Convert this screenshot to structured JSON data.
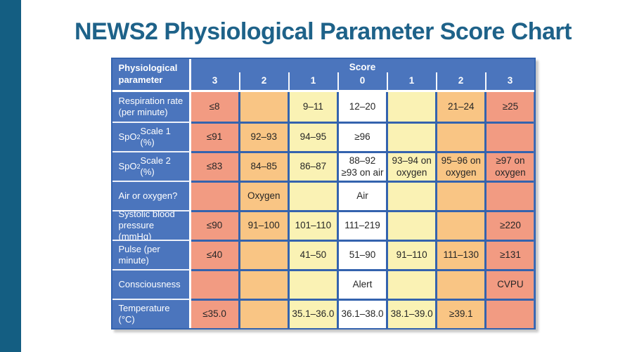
{
  "slide": {
    "title": "NEWS2 Physiological Parameter Score Chart"
  },
  "colors": {
    "accent_bar": "#145E82",
    "title_text": "#1E6289",
    "header_blue": "#4B75BD",
    "grid_blue": "#3463AE",
    "score3_salmon": "#F29B82",
    "score2_orange": "#F9C584",
    "score1_yellow": "#FAF2B4",
    "score0_white": "#FFFFFF"
  },
  "chart_data": {
    "type": "table",
    "title": "NEWS2 Physiological Parameter Score Chart",
    "header": {
      "param": "Physiological parameter",
      "score": "Score",
      "score_values": [
        "3",
        "2",
        "1",
        "0",
        "1",
        "2",
        "3"
      ]
    },
    "tone_legend": {
      "salmon": "score 3",
      "orange": "score 2",
      "yellow": "score 1",
      "white": "score 0"
    },
    "rows": [
      {
        "label_pre": "Respiration rate\n(per minute)",
        "label_sub": "",
        "label_post": "",
        "cells": [
          {
            "text": "≤8",
            "tone": "salmon"
          },
          {
            "text": "",
            "tone": "orange"
          },
          {
            "text": "9–11",
            "tone": "yellow"
          },
          {
            "text": "12–20",
            "tone": "white"
          },
          {
            "text": "",
            "tone": "yellow"
          },
          {
            "text": "21–24",
            "tone": "orange"
          },
          {
            "text": "≥25",
            "tone": "salmon"
          }
        ]
      },
      {
        "label_pre": "SpO",
        "label_sub": "2",
        "label_post": " Scale 1 (%)",
        "cells": [
          {
            "text": "≤91",
            "tone": "salmon"
          },
          {
            "text": "92–93",
            "tone": "orange"
          },
          {
            "text": "94–95",
            "tone": "yellow"
          },
          {
            "text": "≥96",
            "tone": "white"
          },
          {
            "text": "",
            "tone": "yellow"
          },
          {
            "text": "",
            "tone": "orange"
          },
          {
            "text": "",
            "tone": "salmon"
          }
        ]
      },
      {
        "label_pre": "SpO",
        "label_sub": "2",
        "label_post": " Scale 2 (%)",
        "cells": [
          {
            "text": "≤83",
            "tone": "salmon"
          },
          {
            "text": "84–85",
            "tone": "orange"
          },
          {
            "text": "86–87",
            "tone": "yellow"
          },
          {
            "text": "88–92\n≥93 on air",
            "tone": "white"
          },
          {
            "text": "93–94 on\noxygen",
            "tone": "yellow"
          },
          {
            "text": "95–96 on\noxygen",
            "tone": "orange"
          },
          {
            "text": "≥97 on\noxygen",
            "tone": "salmon"
          }
        ]
      },
      {
        "label_pre": "Air or oxygen?",
        "label_sub": "",
        "label_post": "",
        "cells": [
          {
            "text": "",
            "tone": "salmon"
          },
          {
            "text": "Oxygen",
            "tone": "orange"
          },
          {
            "text": "",
            "tone": "yellow"
          },
          {
            "text": "Air",
            "tone": "white"
          },
          {
            "text": "",
            "tone": "yellow"
          },
          {
            "text": "",
            "tone": "orange"
          },
          {
            "text": "",
            "tone": "salmon"
          }
        ]
      },
      {
        "label_pre": "Systolic blood\npressure (mmHg)",
        "label_sub": "",
        "label_post": "",
        "cells": [
          {
            "text": "≤90",
            "tone": "salmon"
          },
          {
            "text": "91–100",
            "tone": "orange"
          },
          {
            "text": "101–110",
            "tone": "yellow"
          },
          {
            "text": "111–219",
            "tone": "white"
          },
          {
            "text": "",
            "tone": "yellow"
          },
          {
            "text": "",
            "tone": "orange"
          },
          {
            "text": "≥220",
            "tone": "salmon"
          }
        ]
      },
      {
        "label_pre": "Pulse (per minute)",
        "label_sub": "",
        "label_post": "",
        "cells": [
          {
            "text": "≤40",
            "tone": "salmon"
          },
          {
            "text": "",
            "tone": "orange"
          },
          {
            "text": "41–50",
            "tone": "yellow"
          },
          {
            "text": "51–90",
            "tone": "white"
          },
          {
            "text": "91–110",
            "tone": "yellow"
          },
          {
            "text": "111–130",
            "tone": "orange"
          },
          {
            "text": "≥131",
            "tone": "salmon"
          }
        ]
      },
      {
        "label_pre": "Consciousness",
        "label_sub": "",
        "label_post": "",
        "cells": [
          {
            "text": "",
            "tone": "salmon"
          },
          {
            "text": "",
            "tone": "orange"
          },
          {
            "text": "",
            "tone": "yellow"
          },
          {
            "text": "Alert",
            "tone": "white"
          },
          {
            "text": "",
            "tone": "yellow"
          },
          {
            "text": "",
            "tone": "orange"
          },
          {
            "text": "CVPU",
            "tone": "salmon"
          }
        ]
      },
      {
        "label_pre": "Temperature (°C)",
        "label_sub": "",
        "label_post": "",
        "cells": [
          {
            "text": "≤35.0",
            "tone": "salmon"
          },
          {
            "text": "",
            "tone": "orange"
          },
          {
            "text": "35.1–36.0",
            "tone": "yellow"
          },
          {
            "text": "36.1–38.0",
            "tone": "white"
          },
          {
            "text": "38.1–39.0",
            "tone": "yellow"
          },
          {
            "text": "≥39.1",
            "tone": "orange"
          },
          {
            "text": "",
            "tone": "salmon"
          }
        ]
      }
    ]
  }
}
